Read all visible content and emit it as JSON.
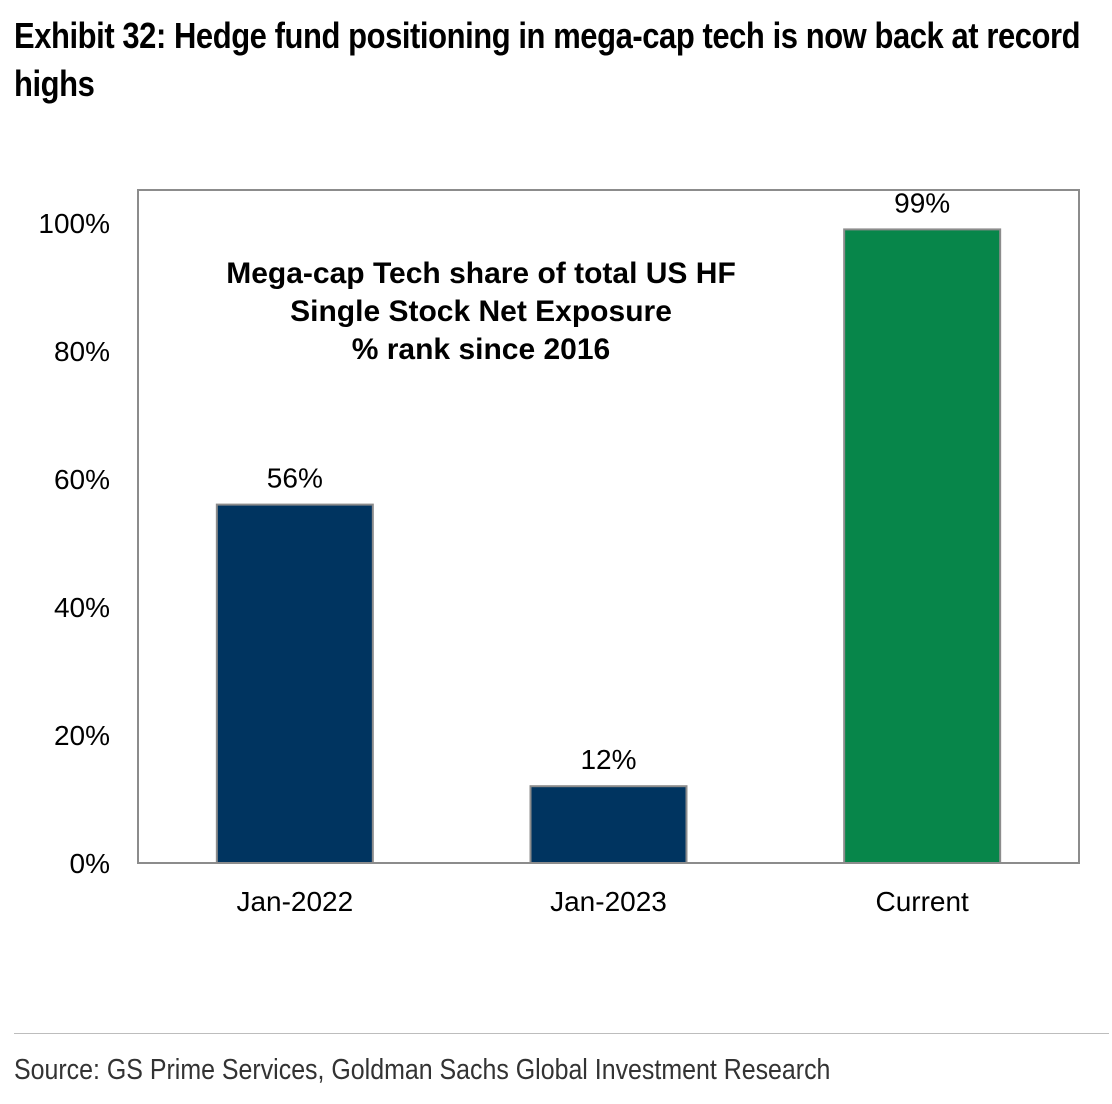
{
  "exhibit": {
    "title": "Exhibit 32: Hedge fund positioning in mega-cap tech is now back at record highs"
  },
  "source": "Source: GS Prime Services, Goldman Sachs Global Investment Research",
  "colors": {
    "navy": "#003460",
    "green": "#07864a",
    "frame": "#8c8c8c"
  },
  "chart_data": {
    "type": "bar",
    "title_lines": [
      "Mega-cap Tech share of total US HF",
      "Single Stock Net Exposure",
      "% rank since 2016"
    ],
    "categories": [
      "Jan-2022",
      "Jan-2023",
      "Current"
    ],
    "values": [
      56,
      12,
      99
    ],
    "data_labels": [
      "56%",
      "12%",
      "99%"
    ],
    "bar_colors": [
      "#003460",
      "#003460",
      "#07864a"
    ],
    "ylim": [
      0,
      105
    ],
    "yticks": [
      {
        "value": 0,
        "label": "0%"
      },
      {
        "value": 20,
        "label": "20%"
      },
      {
        "value": 40,
        "label": "40%"
      },
      {
        "value": 60,
        "label": "60%"
      },
      {
        "value": 80,
        "label": "80%"
      },
      {
        "value": 100,
        "label": "100%"
      }
    ],
    "xlabel": "",
    "ylabel": "",
    "grid": false,
    "legend": "none"
  }
}
